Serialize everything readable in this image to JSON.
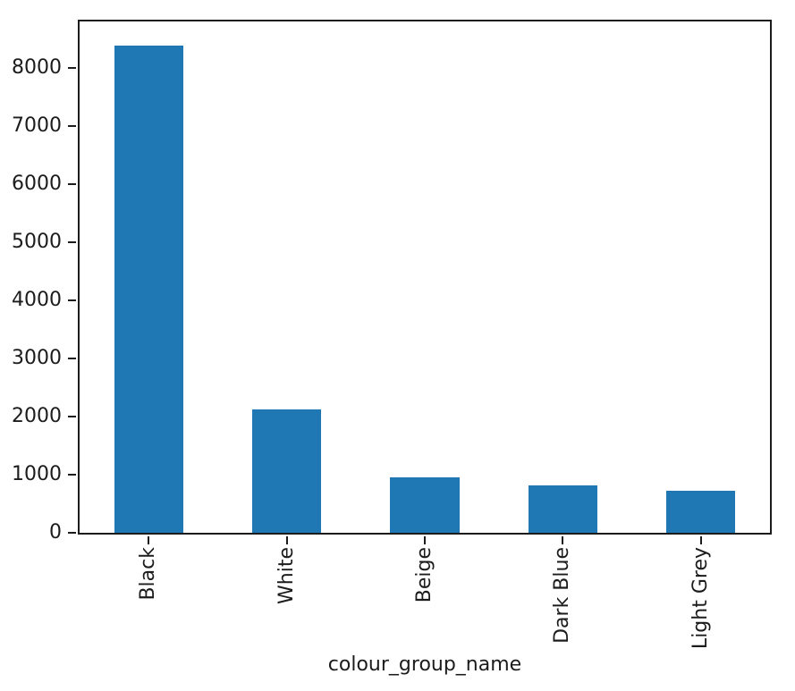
{
  "chart_data": {
    "type": "bar",
    "title": "",
    "xlabel": "colour_group_name",
    "ylabel": "",
    "categories": [
      "Black",
      "White",
      "Beige",
      "Dark Blue",
      "Light Grey"
    ],
    "values": [
      8380,
      2120,
      960,
      820,
      720
    ],
    "ylim": [
      0,
      8800
    ],
    "yticks": [
      0,
      1000,
      2000,
      3000,
      4000,
      5000,
      6000,
      7000,
      8000
    ],
    "bar_width_fraction": 0.5,
    "grid": false,
    "legend": null,
    "bar_color": "#1f77b4",
    "axis_color": "#1c1c1c",
    "background_color": "#ffffff"
  }
}
